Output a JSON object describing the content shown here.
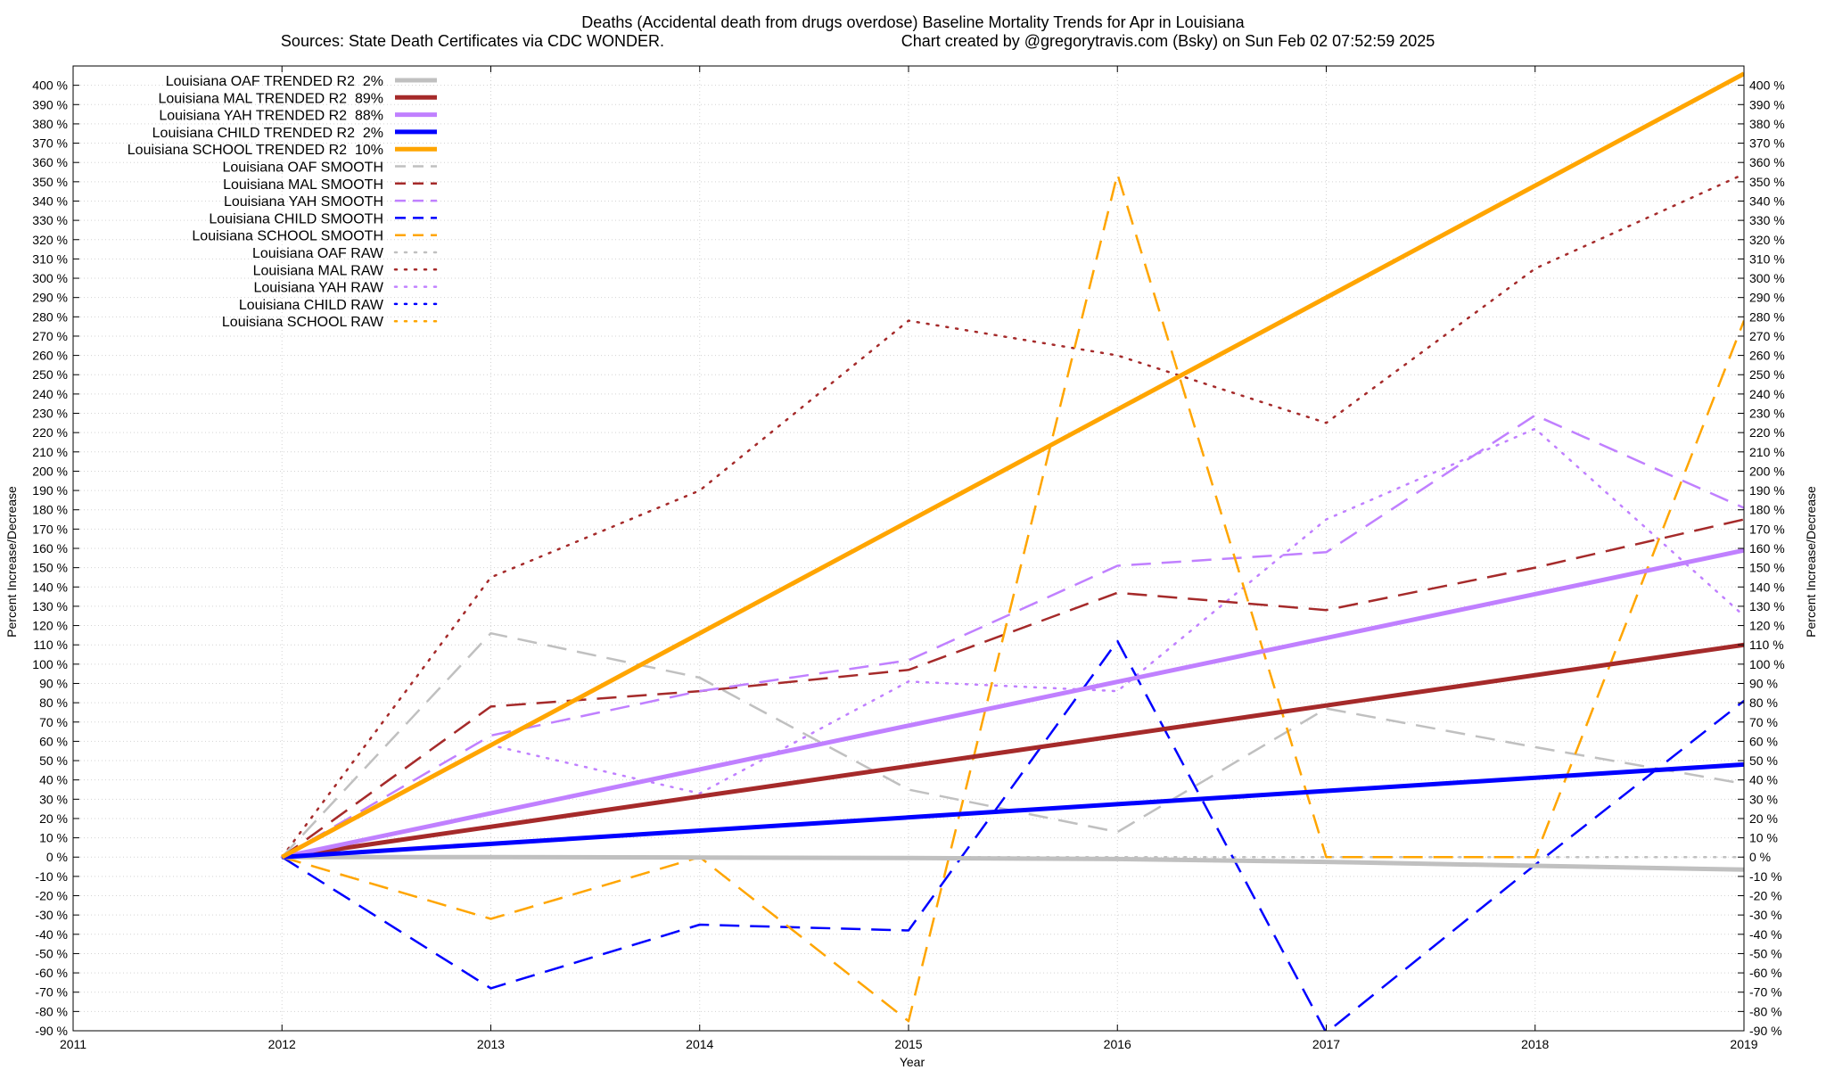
{
  "chart_data": {
    "type": "line",
    "title": "Deaths (Accidental death from drugs overdose)  Baseline Mortality Trends for Apr in Louisiana",
    "subtitle_left": "Sources: State Death Certificates via CDC WONDER.",
    "subtitle_right": "Chart created by @gregorytravis.com (Bsky) on Sun Feb 02 07:52:59 2025",
    "xlabel": "Year",
    "ylabel": "Percent Increase/Decrease",
    "xlim": [
      2011,
      2019
    ],
    "ylim": [
      -90,
      410
    ],
    "x_ticks": [
      "2011",
      "2012",
      "2013",
      "2014",
      "2015",
      "2016",
      "2017",
      "2018",
      "2019"
    ],
    "y_ticks": [
      "-90 %",
      "-80 %",
      "-70 %",
      "-60 %",
      "-50 %",
      "-40 %",
      "-30 %",
      "-20 %",
      "-10 %",
      "0 %",
      "10 %",
      "20 %",
      "30 %",
      "40 %",
      "50 %",
      "60 %",
      "70 %",
      "80 %",
      "90 %",
      "100 %",
      "110 %",
      "120 %",
      "130 %",
      "140 %",
      "150 %",
      "160 %",
      "170 %",
      "180 %",
      "190 %",
      "200 %",
      "210 %",
      "220 %",
      "230 %",
      "240 %",
      "250 %",
      "260 %",
      "270 %",
      "280 %",
      "290 %",
      "300 %",
      "310 %",
      "320 %",
      "330 %",
      "340 %",
      "350 %",
      "360 %",
      "370 %",
      "380 %",
      "390 %",
      "400 %"
    ],
    "grid": true,
    "legend_position": "top-left",
    "series": [
      {
        "name": "Louisiana OAF TRENDED R2",
        "r2": "2%",
        "color": "#c0c0c0",
        "style": "solid",
        "x": [
          2012,
          2013,
          2014,
          2015,
          2016,
          2017,
          2018,
          2019
        ],
        "values": [
          0,
          0,
          -0.2,
          -0.5,
          -1,
          -2.5,
          -4.5,
          -6.5
        ]
      },
      {
        "name": "Louisiana MAL TRENDED R2",
        "r2": "89%",
        "color": "#a52a2a",
        "style": "solid",
        "x": [
          2012,
          2019
        ],
        "values": [
          0,
          110
        ]
      },
      {
        "name": "Louisiana YAH TRENDED R2",
        "r2": "88%",
        "color": "#c080ff",
        "style": "solid",
        "x": [
          2012,
          2019
        ],
        "values": [
          0,
          159
        ]
      },
      {
        "name": "Louisiana CHILD TRENDED R2",
        "r2": "2%",
        "color": "#0000ff",
        "style": "solid",
        "x": [
          2012,
          2019
        ],
        "values": [
          0,
          48
        ]
      },
      {
        "name": "Louisiana SCHOOL TRENDED R2",
        "r2": "10%",
        "color": "#ffa500",
        "style": "solid",
        "x": [
          2012,
          2019
        ],
        "values": [
          0,
          406
        ]
      },
      {
        "name": "Louisiana OAF SMOOTH",
        "r2": "",
        "color": "#c0c0c0",
        "style": "dashed",
        "x": [
          2012,
          2013,
          2014,
          2015,
          2016,
          2017,
          2018,
          2019
        ],
        "values": [
          0,
          116,
          93,
          35,
          13,
          77,
          57,
          38
        ]
      },
      {
        "name": "Louisiana MAL SMOOTH",
        "r2": "",
        "color": "#a52a2a",
        "style": "dashed",
        "x": [
          2012,
          2013,
          2014,
          2015,
          2016,
          2017,
          2018,
          2019
        ],
        "values": [
          0,
          78,
          86,
          97,
          137,
          128,
          150,
          175
        ]
      },
      {
        "name": "Louisiana YAH SMOOTH",
        "r2": "",
        "color": "#c080ff",
        "style": "dashed",
        "x": [
          2012,
          2013,
          2014,
          2015,
          2016,
          2017,
          2018,
          2019
        ],
        "values": [
          0,
          63,
          86,
          102,
          151,
          158,
          229,
          181
        ]
      },
      {
        "name": "Louisiana CHILD SMOOTH",
        "r2": "",
        "color": "#0000ff",
        "style": "dashed",
        "x": [
          2012,
          2013,
          2014,
          2015,
          2016,
          2017,
          2018,
          2019
        ],
        "values": [
          0,
          -68,
          -35,
          -38,
          112,
          -91,
          -4,
          81
        ]
      },
      {
        "name": "Louisiana SCHOOL SMOOTH",
        "r2": "",
        "color": "#ffa500",
        "style": "dashed",
        "x": [
          2012,
          2013,
          2014,
          2015,
          2016,
          2017,
          2018,
          2019
        ],
        "values": [
          0,
          -32,
          0,
          -85,
          354,
          0,
          0,
          278
        ]
      },
      {
        "name": "Louisiana OAF RAW",
        "r2": "",
        "color": "#c0c0c0",
        "style": "dotted",
        "x": [
          2012,
          2013,
          2014,
          2015,
          2016,
          2017,
          2018,
          2019
        ],
        "values": [
          0,
          0,
          0,
          0,
          0,
          0,
          0,
          0
        ]
      },
      {
        "name": "Louisiana MAL RAW",
        "r2": "",
        "color": "#a52a2a",
        "style": "dotted",
        "x": [
          2012,
          2013,
          2014,
          2015,
          2016,
          2017,
          2018,
          2019
        ],
        "values": [
          0,
          145,
          190,
          278,
          260,
          225,
          305,
          354
        ]
      },
      {
        "name": "Louisiana YAH RAW",
        "r2": "",
        "color": "#c080ff",
        "style": "dotted",
        "x": [
          2012,
          2013,
          2014,
          2015,
          2016,
          2017,
          2018,
          2019
        ],
        "values": [
          0,
          58,
          33,
          91,
          86,
          175,
          222,
          125
        ]
      },
      {
        "name": "Louisiana CHILD RAW",
        "r2": "",
        "color": "#0000ff",
        "style": "dotted",
        "x": [],
        "values": []
      },
      {
        "name": "Louisiana SCHOOL RAW",
        "r2": "",
        "color": "#ffa500",
        "style": "dotted",
        "x": [],
        "values": []
      }
    ]
  }
}
